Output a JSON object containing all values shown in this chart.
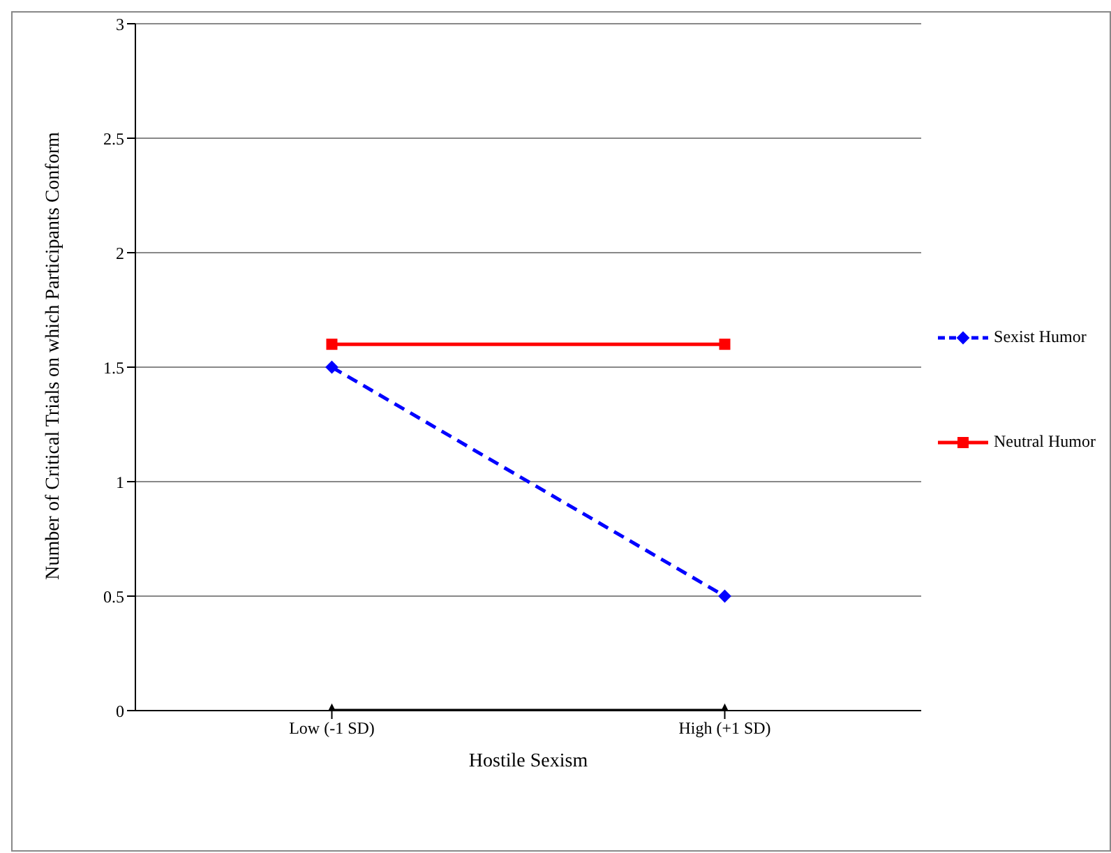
{
  "chart_data": {
    "type": "line",
    "xlabel": "Hostile Sexism",
    "ylabel": "Number of Critical Trials on which Participants Conform",
    "categories": [
      "Low (-1 SD)",
      "High (+1 SD)"
    ],
    "series": [
      {
        "name": "Sexist Humor",
        "color": "#0000ff",
        "values": [
          1.5,
          0.5
        ],
        "marker": "diamond",
        "line_style": "dashed"
      },
      {
        "name": "Neutral Humor",
        "color": "#ff0000",
        "values": [
          1.6,
          1.6
        ],
        "marker": "square",
        "line_style": "solid"
      },
      {
        "color": "#000000",
        "values": [
          0,
          0
        ],
        "marker": "triangle",
        "line_style": "solid"
      }
    ],
    "ylim": [
      0,
      3
    ],
    "yticks": [
      0,
      0.5,
      1,
      1.5,
      2,
      2.5,
      3
    ],
    "grid": "y",
    "legend": "right"
  }
}
